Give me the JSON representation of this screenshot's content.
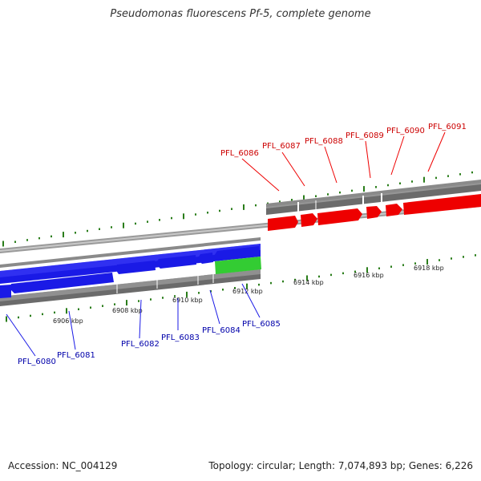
{
  "title": "Pseudomonas fluorescens Pf-5, complete genome",
  "footer": {
    "accession": "Accession: NC_004129",
    "summary": "Topology: circular; Length: 7,074,893 bp; Genes: 6,226"
  },
  "colors": {
    "forward": "#ee0000",
    "reverse": "#1a1ae6",
    "selected": "#33cc33",
    "label_forward": "#cc0000",
    "label_reverse": "#0000aa",
    "tick": "#2a7d1a",
    "backbone": "#777777"
  },
  "kbp_labels": [
    "6906 kbp",
    "6908 kbp",
    "6910 kbp",
    "6912 kbp",
    "6914 kbp",
    "6916 kbp",
    "6918 kbp"
  ],
  "genes_forward": [
    "PFL_6086",
    "PFL_6087",
    "PFL_6088",
    "PFL_6089",
    "PFL_6090",
    "PFL_6091"
  ],
  "genes_reverse": [
    "PFL_6080",
    "PFL_6081",
    "PFL_6082",
    "PFL_6083",
    "PFL_6084",
    "PFL_6085"
  ]
}
